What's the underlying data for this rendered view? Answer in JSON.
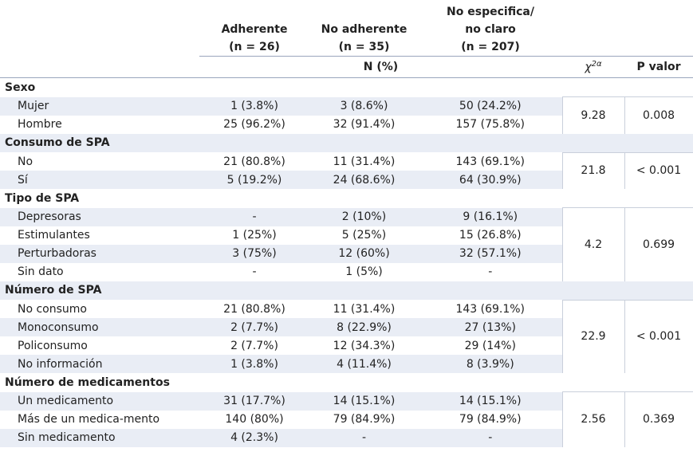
{
  "table": {
    "columns": [
      [
        "Adherente",
        "(n = 26)"
      ],
      [
        "No adherente",
        "(n = 35)"
      ],
      [
        "No especifica/",
        "no claro",
        "(n = 207)"
      ]
    ],
    "subheader": "N (%)",
    "stat_symbol": "χ",
    "stat_superscript": "2α",
    "p_header": "P valor",
    "groups": [
      {
        "title": "Sexo",
        "chi": "9.28",
        "p": "0.008",
        "rows": [
          {
            "label": "Mujer",
            "values": [
              "1 (3.8%)",
              "3 (8.6%)",
              "50 (24.2%)"
            ]
          },
          {
            "label": "Hombre",
            "values": [
              "25 (96.2%)",
              "32 (91.4%)",
              "157 (75.8%)"
            ]
          }
        ]
      },
      {
        "title": "Consumo de SPA",
        "chi": "21.8",
        "p": "< 0.001",
        "rows": [
          {
            "label": "No",
            "values": [
              "21 (80.8%)",
              "11 (31.4%)",
              "143 (69.1%)"
            ]
          },
          {
            "label": "Sí",
            "values": [
              "5 (19.2%)",
              "24 (68.6%)",
              "64 (30.9%)"
            ]
          }
        ]
      },
      {
        "title": "Tipo de SPA",
        "chi": "4.2",
        "p": "0.699",
        "rows": [
          {
            "label": "Depresoras",
            "values": [
              "-",
              "2 (10%)",
              "9 (16.1%)"
            ]
          },
          {
            "label": "Estimulantes",
            "values": [
              "1 (25%)",
              "5 (25%)",
              "15 (26.8%)"
            ]
          },
          {
            "label": "Perturbadoras",
            "values": [
              "3 (75%)",
              "12 (60%)",
              "32 (57.1%)"
            ]
          },
          {
            "label": "Sin dato",
            "values": [
              "-",
              "1 (5%)",
              "-"
            ]
          }
        ]
      },
      {
        "title": "Número de SPA",
        "chi": "22.9",
        "p": "< 0.001",
        "rows": [
          {
            "label": "No consumo",
            "values": [
              "21 (80.8%)",
              "11 (31.4%)",
              "143 (69.1%)"
            ]
          },
          {
            "label": "Monoconsumo",
            "values": [
              "2 (7.7%)",
              "8 (22.9%)",
              "27 (13%)"
            ]
          },
          {
            "label": "Policonsumo",
            "values": [
              "2 (7.7%)",
              "12 (34.3%)",
              "29 (14%)"
            ]
          },
          {
            "label": "No información",
            "values": [
              "1 (3.8%)",
              "4 (11.4%)",
              "8 (3.9%)"
            ]
          }
        ]
      },
      {
        "title": "Número de medicamentos",
        "chi": "2.56",
        "p": "0.369",
        "rows": [
          {
            "label": "Un medicamento",
            "values": [
              "31 (17.7%)",
              "14 (15.1%)",
              "14 (15.1%)"
            ]
          },
          {
            "label": "Más de un medica-mento",
            "values": [
              "140 (80%)",
              "79 (84.9%)",
              "79 (84.9%)"
            ]
          },
          {
            "label": "Sin medicamento",
            "values": [
              "4 (2.3%)",
              "-",
              "-"
            ]
          }
        ]
      }
    ]
  }
}
